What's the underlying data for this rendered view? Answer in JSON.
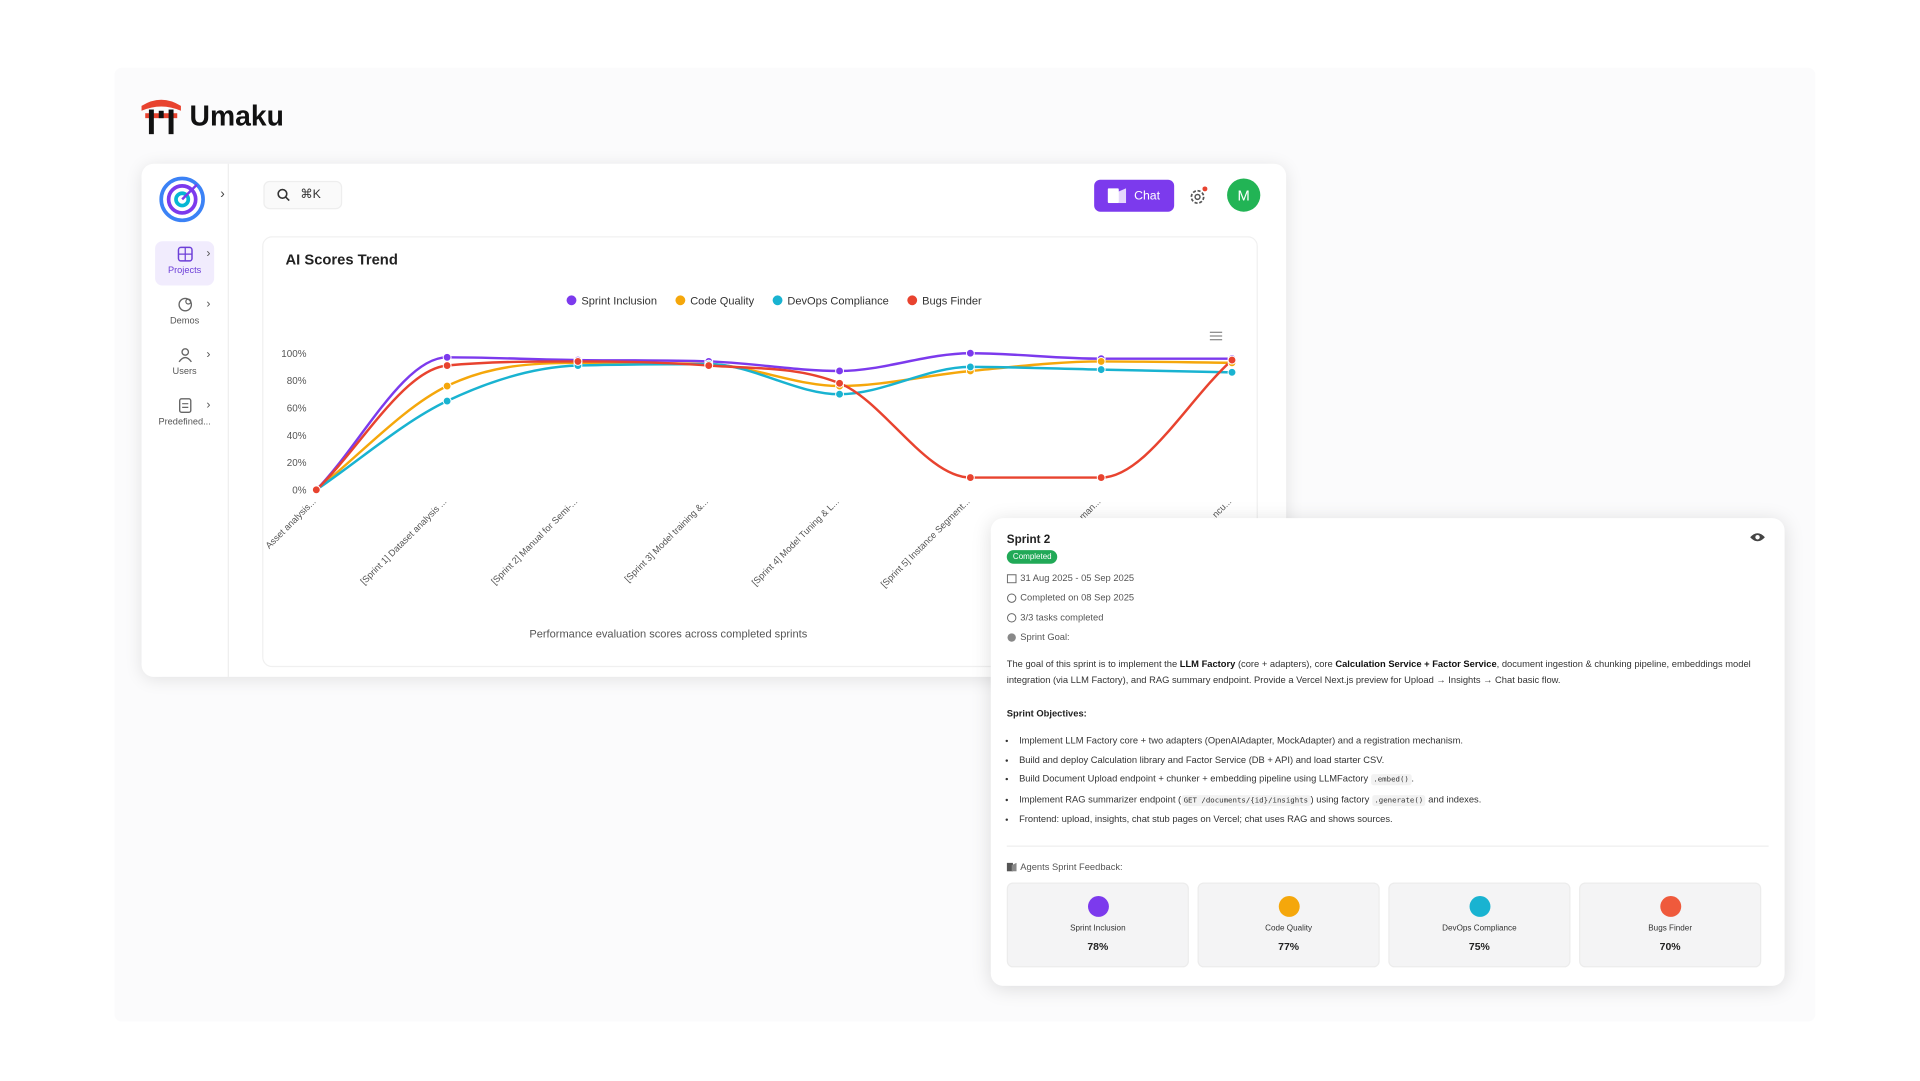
{
  "brand": {
    "name": "Umaku"
  },
  "sidebar": {
    "items": [
      "Projects",
      "Demos",
      "Users",
      "Predefined..."
    ]
  },
  "topbar": {
    "search_shortcut": "⌘K",
    "chat_button": "Chat",
    "avatar": "M"
  },
  "chart_data": {
    "type": "line",
    "title": "AI Scores Trend",
    "subtitle": "Performance evaluation scores across completed sprints",
    "categories": [
      "Asset analysis...",
      "[Sprint 1] Dataset analysis ...",
      "[Sprint 2] Manual for Semi-...",
      "[Sprint 3] Model training &...",
      "[Sprint 4] Model Tuning & L...",
      "[Sprint 5] Instance Segment...",
      "...man...",
      "...ncu..."
    ],
    "series": [
      {
        "name": "Sprint Inclusion",
        "color": "#7c3aed",
        "values": [
          0,
          97,
          95,
          94,
          87,
          100,
          96,
          96
        ]
      },
      {
        "name": "Code Quality",
        "color": "#f5a70b",
        "values": [
          0,
          76,
          93,
          92,
          76,
          87,
          94,
          93
        ]
      },
      {
        "name": "DevOps Compliance",
        "color": "#19b3d1",
        "values": [
          0,
          65,
          91,
          92,
          70,
          90,
          88,
          86
        ]
      },
      {
        "name": "Bugs Finder",
        "color": "#e8432f",
        "values": [
          0,
          91,
          94,
          91,
          78,
          9,
          9,
          95
        ]
      }
    ],
    "ylim": [
      0,
      100
    ],
    "yticks": [
      {
        "value": 0,
        "label": "0%"
      },
      {
        "value": 20,
        "label": "20%"
      },
      {
        "value": 40,
        "label": "40%"
      },
      {
        "value": 60,
        "label": "60%"
      },
      {
        "value": 80,
        "label": "80%"
      },
      {
        "value": 100,
        "label": "100%"
      }
    ],
    "grid": false,
    "legend": "top"
  },
  "sprint_card": {
    "title": "Sprint 2",
    "status": "Completed",
    "dates": "31 Aug 2025 - 05 Sep 2025",
    "completed_on": "Completed on 08 Sep 2025",
    "tasks": "3/3 tasks completed",
    "goal_label": "Sprint Goal:",
    "goal": [
      "The goal of this sprint is to implement the ",
      "LLM Factory",
      " (core + adapters), core ",
      "Calculation Service + Factor Service",
      ", document ingestion & chunking pipeline, embeddings model integration (via LLM Factory), and RAG summary endpoint. Provide a Vercel Next.js preview for Upload → Insights → Chat basic flow."
    ],
    "objectives_label": "Sprint Objectives:",
    "objectives": [
      [
        "Implement LLM Factory core + two adapters (OpenAIAdapter, MockAdapter) and a registration mechanism."
      ],
      [
        "Build and deploy Calculation library and Factor Service (DB + API) and load starter CSV."
      ],
      [
        "Build Document Upload endpoint + chunker + embedding pipeline using LLMFactory ",
        ".embed()",
        "."
      ],
      [
        "Implement RAG summarizer endpoint (",
        "GET /documents/{id}/insights",
        ") using factory ",
        ".generate()",
        " and indexes."
      ],
      [
        "Frontend: upload, insights, chat stub pages on Vercel; chat uses RAG and shows sources."
      ]
    ],
    "feedback_label": "Agents Sprint Feedback:",
    "agents": [
      {
        "name": "Sprint Inclusion",
        "score": "78%"
      },
      {
        "name": "Code Quality",
        "score": "77%"
      },
      {
        "name": "DevOps Compliance",
        "score": "75%"
      },
      {
        "name": "Bugs Finder",
        "score": "70%"
      }
    ]
  }
}
